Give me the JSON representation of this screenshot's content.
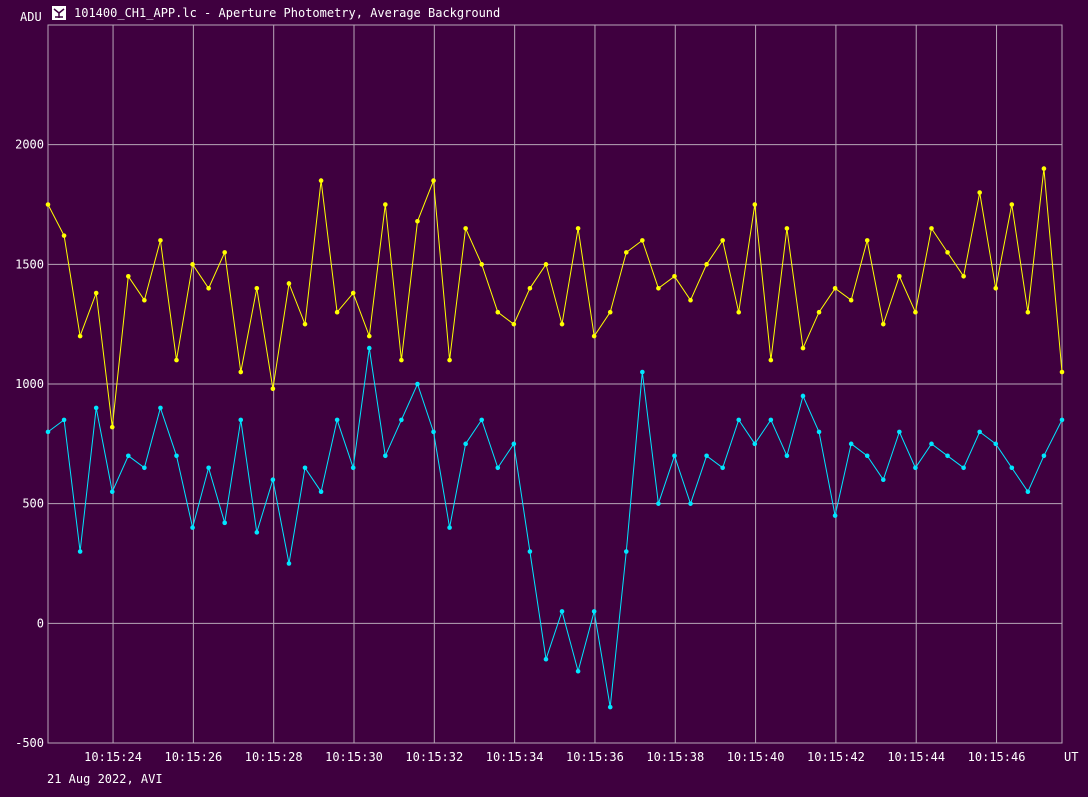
{
  "window": {
    "title": "101400_CH1_APP.lc - Aperture Photometry, Average Background",
    "icon": "lightcurve-app-icon"
  },
  "footer": {
    "date_info": "21 Aug 2022, AVI"
  },
  "chart_data": {
    "type": "line",
    "title": "",
    "ylabel": "ADU",
    "xlabel": "UT",
    "ylim": [
      -500,
      2500
    ],
    "yticks": [
      -500,
      0,
      500,
      1000,
      1500,
      2000
    ],
    "ytick_labels": [
      "-500",
      "0",
      "500",
      "1000",
      "1500",
      "2000"
    ],
    "xlim": [
      22.3,
      47.55
    ],
    "xticks": [
      23.92,
      25.92,
      27.92,
      29.92,
      31.92,
      33.92,
      35.92,
      37.92,
      39.92,
      41.92,
      43.92,
      45.92
    ],
    "xtick_labels": [
      "10:15:24",
      "10:15:26",
      "10:15:28",
      "10:15:30",
      "10:15:32",
      "10:15:34",
      "10:15:36",
      "10:15:38",
      "10:15:40",
      "10:15:42",
      "10:15:44",
      "10:15:46"
    ],
    "x_unit_note": "x values are seconds after 10:15:00 UT",
    "grid": true,
    "series": [
      {
        "color": "#ffff00",
        "x": [
          22.3,
          22.7,
          23.1,
          23.5,
          23.9,
          24.3,
          24.7,
          25.1,
          25.5,
          25.9,
          26.3,
          26.7,
          27.1,
          27.5,
          27.9,
          28.3,
          28.7,
          29.1,
          29.5,
          29.9,
          30.3,
          30.7,
          31.1,
          31.5,
          31.9,
          32.3,
          32.7,
          33.1,
          33.5,
          33.9,
          34.3,
          34.7,
          35.1,
          35.5,
          35.9,
          36.3,
          36.7,
          37.1,
          37.5,
          37.9,
          38.3,
          38.7,
          39.1,
          39.5,
          39.9,
          40.3,
          40.7,
          41.1,
          41.5,
          41.9,
          42.3,
          42.7,
          43.1,
          43.5,
          43.9,
          44.3,
          44.7,
          45.1,
          45.5,
          45.9,
          46.3,
          46.7,
          47.1,
          47.55
        ],
        "values": [
          1750,
          1620,
          1200,
          1380,
          820,
          1450,
          1350,
          1600,
          1100,
          1500,
          1400,
          1550,
          1050,
          1400,
          980,
          1420,
          1250,
          1850,
          1300,
          1380,
          1200,
          1750,
          1100,
          1680,
          1850,
          1100,
          1650,
          1500,
          1300,
          1250,
          1400,
          1500,
          1250,
          1650,
          1200,
          1300,
          1550,
          1600,
          1400,
          1450,
          1350,
          1500,
          1600,
          1300,
          1750,
          1100,
          1650,
          1150,
          1300,
          1400,
          1350,
          1600,
          1250,
          1450,
          1300,
          1650,
          1550,
          1450,
          1800,
          1400,
          1750,
          1300,
          1900,
          1050
        ]
      },
      {
        "color": "#00e6ff",
        "x": [
          22.3,
          22.7,
          23.1,
          23.5,
          23.9,
          24.3,
          24.7,
          25.1,
          25.5,
          25.9,
          26.3,
          26.7,
          27.1,
          27.5,
          27.9,
          28.3,
          28.7,
          29.1,
          29.5,
          29.9,
          30.3,
          30.7,
          31.1,
          31.5,
          31.9,
          32.3,
          32.7,
          33.1,
          33.5,
          33.9,
          34.3,
          34.7,
          35.1,
          35.5,
          35.9,
          36.3,
          36.7,
          37.1,
          37.5,
          37.9,
          38.3,
          38.7,
          39.1,
          39.5,
          39.9,
          40.3,
          40.7,
          41.1,
          41.5,
          41.9,
          42.3,
          42.7,
          43.1,
          43.5,
          43.9,
          44.3,
          44.7,
          45.1,
          45.5,
          45.9,
          46.3,
          46.7,
          47.1,
          47.55
        ],
        "values": [
          800,
          850,
          300,
          900,
          550,
          700,
          650,
          900,
          700,
          400,
          650,
          420,
          850,
          380,
          600,
          250,
          650,
          550,
          850,
          650,
          1150,
          700,
          850,
          1000,
          800,
          400,
          750,
          850,
          650,
          750,
          300,
          -150,
          50,
          -200,
          50,
          -350,
          300,
          1050,
          500,
          700,
          500,
          700,
          650,
          850,
          750,
          850,
          700,
          950,
          800,
          450,
          750,
          700,
          600,
          800,
          650,
          750,
          700,
          650,
          800,
          750,
          650,
          550,
          700,
          850
        ]
      }
    ]
  }
}
